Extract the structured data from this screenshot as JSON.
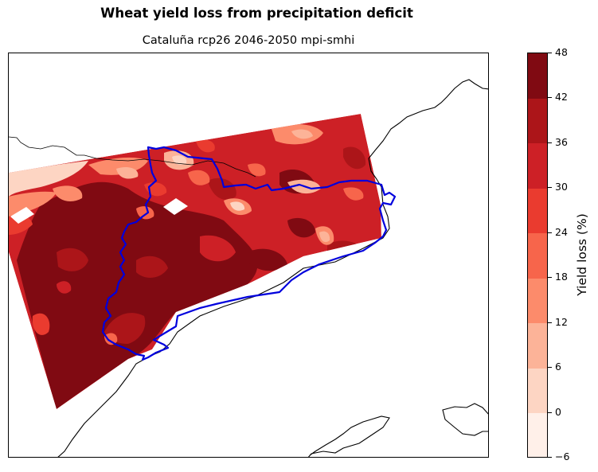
{
  "figure": {
    "title": "Wheat yield loss from precipitation deficit",
    "subtitle": "Cataluña rcp26 2046-2050 mpi-smhi"
  },
  "colorbar": {
    "label": "Yield loss (%)",
    "ticks": [
      "−6",
      "0",
      "6",
      "12",
      "18",
      "24",
      "30",
      "36",
      "42",
      "48"
    ],
    "levels": [
      -6,
      0,
      6,
      12,
      18,
      24,
      30,
      36,
      42,
      48
    ],
    "colors": [
      "#fff0e9",
      "#fdd5c3",
      "#fcb398",
      "#fc8b6b",
      "#f7654b",
      "#ea3b2f",
      "#cd2026",
      "#ac1519",
      "#800a12"
    ]
  },
  "map": {
    "colors": {
      "coastline": "#000000",
      "region_boundary": "#0000dd",
      "background": "#ffffff"
    },
    "layers": [
      "yield-loss-contours",
      "coastline",
      "catalonia-boundary"
    ]
  }
}
